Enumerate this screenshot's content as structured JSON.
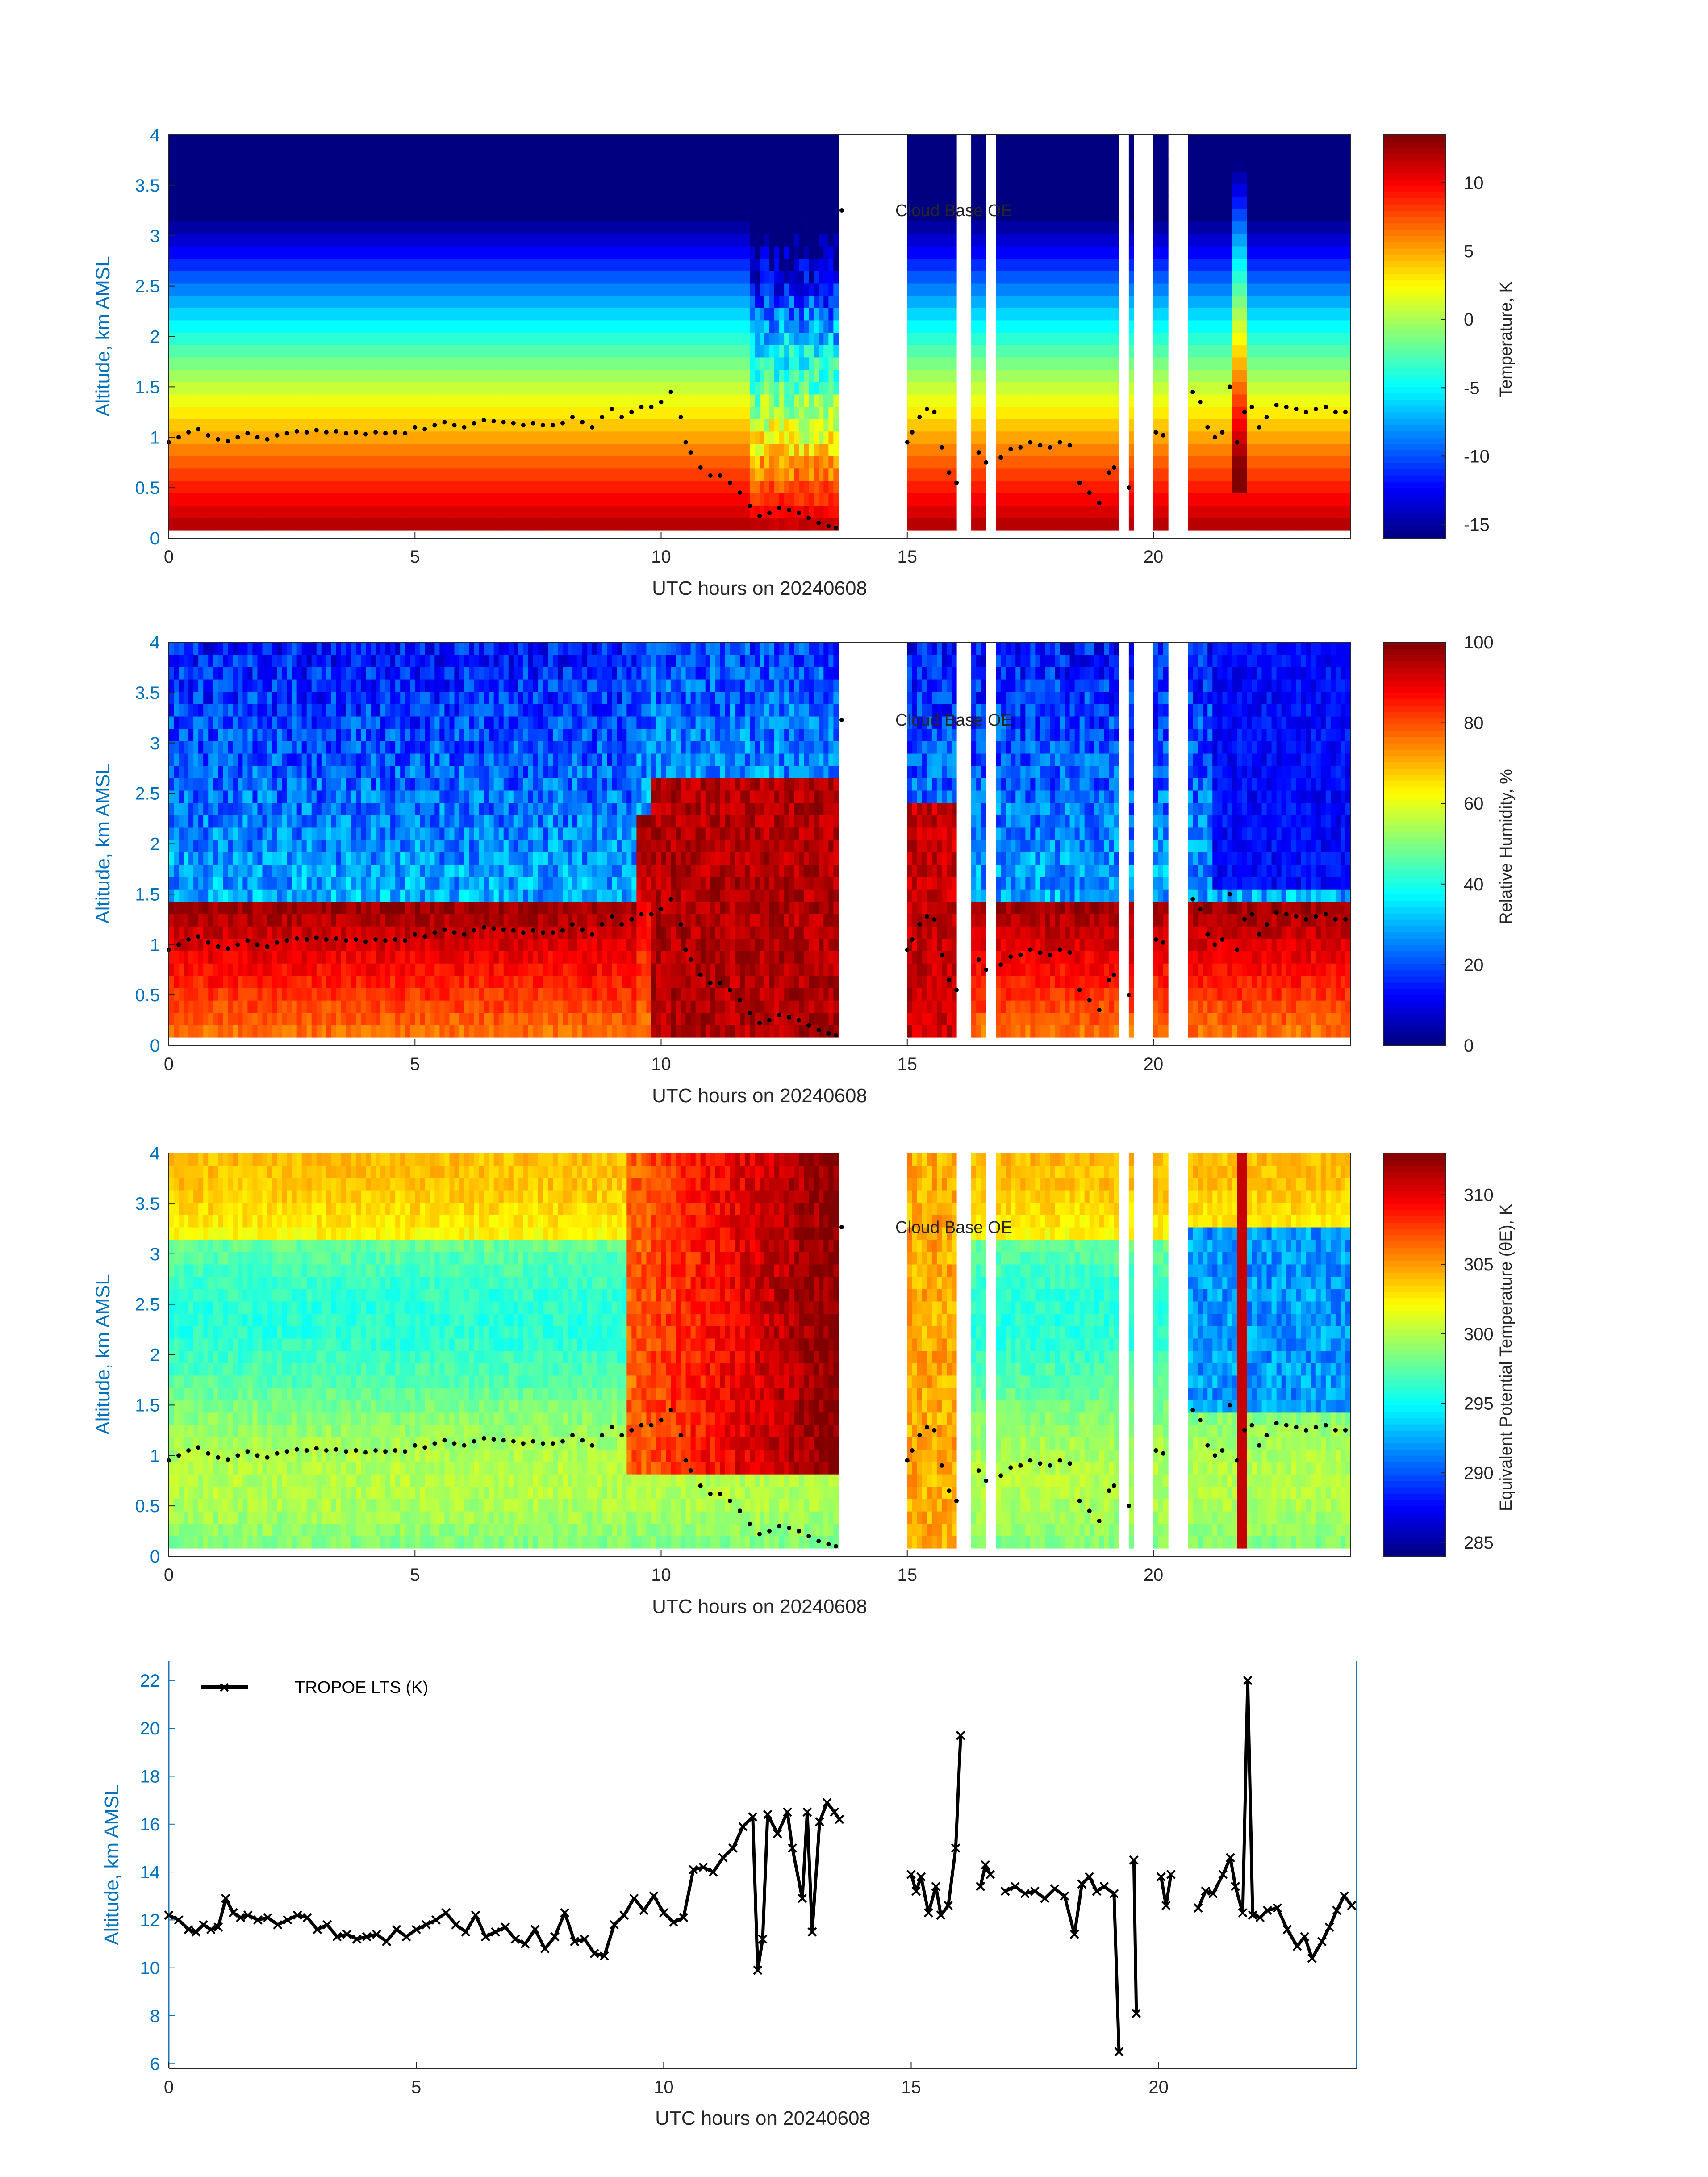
{
  "colors": {
    "axis_blue": "#0072BD",
    "text_dark": "#262626",
    "cloud_base_marker": "#000000",
    "lts_line": "#000000"
  },
  "colormap": "jet",
  "chart_data": [
    {
      "type": "heatmap",
      "id": "temperature",
      "xlabel": "UTC hours on 20240608",
      "ylabel": "Altitude, km AMSL",
      "xlim": [
        0,
        24
      ],
      "ylim": [
        0,
        4
      ],
      "xticks": [
        0,
        5,
        10,
        15,
        20
      ],
      "yticks": [
        0,
        0.5,
        1,
        1.5,
        2,
        2.5,
        3,
        3.5,
        4
      ],
      "colorbar_label": "Temperature, K",
      "clim": [
        -16,
        13.5
      ],
      "colorbar_ticks": [
        -15,
        -10,
        -5,
        0,
        5,
        10
      ],
      "surface_value": 13,
      "lapse_per_km": 7.2,
      "legend": "Cloud Base OE",
      "data_gaps": [
        [
          13.6,
          15.0
        ],
        [
          16.05,
          16.35
        ],
        [
          16.6,
          16.8
        ],
        [
          19.3,
          19.5
        ],
        [
          19.65,
          20.0
        ],
        [
          20.3,
          20.7
        ]
      ]
    },
    {
      "type": "heatmap",
      "id": "relative_humidity",
      "xlabel": "UTC hours on 20240608",
      "ylabel": "Altitude, km AMSL",
      "xlim": [
        0,
        24
      ],
      "ylim": [
        0,
        4
      ],
      "xticks": [
        0,
        5,
        10,
        15,
        20
      ],
      "yticks": [
        0,
        0.5,
        1,
        1.5,
        2,
        2.5,
        3,
        3.5,
        4
      ],
      "colorbar_label": "Relative Humidity, %",
      "clim": [
        0,
        100
      ],
      "colorbar_ticks": [
        0,
        20,
        40,
        60,
        80,
        100
      ],
      "legend": "Cloud Base OE"
    },
    {
      "type": "heatmap",
      "id": "theta_e",
      "xlabel": "UTC hours on 20240608",
      "ylabel": "Altitude, km AMSL",
      "xlim": [
        0,
        24
      ],
      "ylim": [
        0,
        4
      ],
      "xticks": [
        0,
        5,
        10,
        15,
        20
      ],
      "yticks": [
        0,
        0.5,
        1,
        1.5,
        2,
        2.5,
        3,
        3.5,
        4
      ],
      "colorbar_label": "Equivalent Potential Temperature (θE), K",
      "clim": [
        284,
        313
      ],
      "colorbar_ticks": [
        285,
        290,
        295,
        300,
        305,
        310
      ],
      "legend": "Cloud Base OE"
    },
    {
      "type": "line",
      "id": "lts",
      "xlabel": "UTC hours on 20240608",
      "ylabel": "Altitude, km AMSL",
      "xlim": [
        0,
        24
      ],
      "ylim": [
        5.8,
        22.8
      ],
      "xticks": [
        0,
        5,
        10,
        15,
        20
      ],
      "yticks": [
        6,
        8,
        10,
        12,
        14,
        16,
        18,
        20,
        22
      ],
      "legend": "TROPOE LTS (K)",
      "segments": [
        {
          "x": [
            0,
            0.2,
            0.4,
            0.55,
            0.7,
            0.85,
            1.0,
            1.15,
            1.3,
            1.45,
            1.6,
            1.8,
            2.0,
            2.2,
            2.4,
            2.6,
            2.8,
            3.0,
            3.2,
            3.4,
            3.6,
            3.8,
            4.0,
            4.2,
            4.4,
            4.6,
            4.8,
            5.0,
            5.2,
            5.4,
            5.6,
            5.8,
            6.0,
            6.2,
            6.4,
            6.6,
            6.8,
            7.0,
            7.2,
            7.4,
            7.6,
            7.8,
            8.0,
            8.2,
            8.4,
            8.6,
            8.8,
            9.0,
            9.2,
            9.4,
            9.6,
            9.8,
            10.0,
            10.2,
            10.4,
            10.6,
            10.8,
            11.0,
            11.2,
            11.4,
            11.6,
            11.8,
            11.9,
            12.0,
            12.1,
            12.3,
            12.5,
            12.6,
            12.8,
            12.9,
            13.0,
            13.15,
            13.3,
            13.45,
            13.55
          ],
          "y": [
            12.2,
            12.0,
            11.6,
            11.5,
            11.8,
            11.6,
            11.7,
            12.9,
            12.3,
            12.1,
            12.2,
            12.0,
            12.1,
            11.8,
            12.0,
            12.2,
            12.1,
            11.6,
            11.8,
            11.3,
            11.4,
            11.2,
            11.3,
            11.4,
            11.1,
            11.6,
            11.3,
            11.6,
            11.8,
            12.0,
            12.3,
            11.8,
            11.5,
            12.2,
            11.3,
            11.5,
            11.7,
            11.2,
            11.0,
            11.6,
            10.8,
            11.3,
            12.3,
            11.1,
            11.2,
            10.6,
            10.5,
            11.8,
            12.2,
            12.9,
            12.4,
            13.0,
            12.3,
            11.9,
            12.1,
            14.1,
            14.2,
            14.0,
            14.6,
            15.0,
            15.9,
            16.3,
            9.9,
            11.2,
            16.4,
            15.6,
            16.5,
            15.0,
            12.9,
            16.5,
            11.5,
            16.1,
            16.9,
            16.5,
            16.2
          ]
        },
        {
          "x": [
            15.0,
            15.1,
            15.2,
            15.35,
            15.5,
            15.6,
            15.75,
            15.9,
            16.0
          ],
          "y": [
            13.9,
            13.2,
            13.8,
            12.3,
            13.4,
            12.2,
            12.6,
            15.0,
            19.7
          ]
        },
        {
          "x": [
            16.4,
            16.5,
            16.6
          ],
          "y": [
            13.4,
            14.3,
            13.9
          ]
        },
        {
          "x": [
            16.9,
            17.1,
            17.3,
            17.5,
            17.7,
            17.9,
            18.1,
            18.3,
            18.45,
            18.6,
            18.75,
            18.9,
            19.1,
            19.2
          ],
          "y": [
            13.2,
            13.4,
            13.1,
            13.2,
            12.9,
            13.3,
            13.0,
            11.4,
            13.5,
            13.8,
            13.2,
            13.4,
            13.1,
            6.5
          ]
        },
        {
          "x": [
            19.5,
            19.55
          ],
          "y": [
            14.5,
            8.1
          ]
        },
        {
          "x": [
            20.05,
            20.15,
            20.25
          ],
          "y": [
            13.8,
            12.6,
            13.9
          ]
        },
        {
          "x": [
            20.8,
            20.95,
            21.1,
            21.3,
            21.45,
            21.55,
            21.7,
            21.8,
            21.9,
            22.05,
            22.2,
            22.4,
            22.6,
            22.8,
            22.95,
            23.1,
            23.3,
            23.45,
            23.6,
            23.75,
            23.9
          ],
          "y": [
            12.5,
            13.2,
            13.1,
            13.9,
            14.6,
            13.4,
            12.3,
            22.0,
            12.2,
            12.1,
            12.4,
            12.5,
            11.6,
            10.9,
            11.3,
            10.4,
            11.1,
            11.7,
            12.4,
            13.0,
            12.6
          ]
        }
      ]
    }
  ],
  "cloud_base": {
    "x": [
      0,
      0.2,
      0.4,
      0.6,
      0.8,
      1.0,
      1.2,
      1.4,
      1.6,
      1.8,
      2.0,
      2.2,
      2.4,
      2.6,
      2.8,
      3.0,
      3.2,
      3.4,
      3.6,
      3.8,
      4.0,
      4.2,
      4.4,
      4.6,
      4.8,
      5.0,
      5.2,
      5.4,
      5.6,
      5.8,
      6.0,
      6.2,
      6.4,
      6.6,
      6.8,
      7.0,
      7.2,
      7.4,
      7.6,
      7.8,
      8.0,
      8.2,
      8.4,
      8.6,
      8.8,
      9.0,
      9.2,
      9.4,
      9.6,
      9.8,
      10.0,
      10.2,
      10.4,
      10.5,
      10.6,
      10.8,
      11.0,
      11.2,
      11.4,
      11.6,
      11.8,
      12.0,
      12.2,
      12.4,
      12.6,
      12.8,
      13.0,
      13.2,
      13.4,
      13.55,
      15.0,
      15.1,
      15.25,
      15.4,
      15.55,
      15.7,
      15.85,
      16.0,
      16.45,
      16.6,
      16.9,
      17.1,
      17.3,
      17.5,
      17.7,
      17.9,
      18.1,
      18.3,
      18.5,
      18.7,
      18.9,
      19.1,
      19.2,
      19.5,
      20.05,
      20.2,
      20.8,
      20.95,
      21.1,
      21.25,
      21.4,
      21.55,
      21.7,
      21.85,
      22.0,
      22.15,
      22.3,
      22.5,
      22.7,
      22.9,
      23.1,
      23.3,
      23.5,
      23.7,
      23.9
    ],
    "y": [
      0.95,
      1.0,
      1.05,
      1.08,
      1.02,
      0.98,
      0.96,
      1.0,
      1.04,
      1.0,
      0.98,
      1.02,
      1.04,
      1.06,
      1.05,
      1.07,
      1.05,
      1.06,
      1.04,
      1.05,
      1.03,
      1.05,
      1.04,
      1.05,
      1.04,
      1.1,
      1.08,
      1.12,
      1.15,
      1.12,
      1.1,
      1.14,
      1.17,
      1.16,
      1.15,
      1.14,
      1.12,
      1.14,
      1.12,
      1.12,
      1.14,
      1.2,
      1.15,
      1.1,
      1.2,
      1.28,
      1.2,
      1.25,
      1.3,
      1.3,
      1.35,
      1.45,
      1.2,
      0.95,
      0.85,
      0.7,
      0.62,
      0.62,
      0.55,
      0.45,
      0.32,
      0.22,
      0.25,
      0.3,
      0.28,
      0.25,
      0.2,
      0.15,
      0.12,
      0.1,
      0.95,
      1.05,
      1.2,
      1.28,
      1.25,
      0.9,
      0.65,
      0.55,
      0.85,
      0.75,
      0.8,
      0.88,
      0.9,
      0.95,
      0.92,
      0.9,
      0.95,
      0.92,
      0.55,
      0.45,
      0.35,
      0.65,
      0.7,
      0.5,
      1.05,
      1.02,
      1.45,
      1.35,
      1.1,
      1.0,
      1.05,
      1.5,
      0.95,
      1.25,
      1.3,
      1.1,
      1.2,
      1.32,
      1.3,
      1.28,
      1.25,
      1.28,
      1.3,
      1.25,
      1.25
    ]
  }
}
